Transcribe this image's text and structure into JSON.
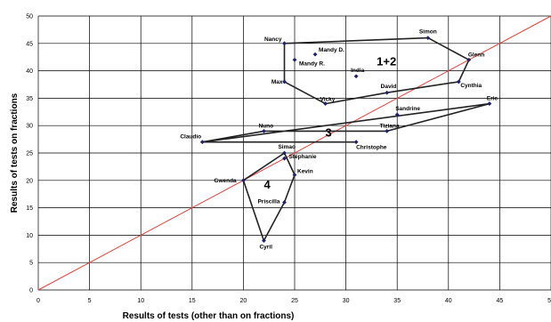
{
  "chart_data": {
    "type": "scatter",
    "title": "",
    "xlabel": "Results of tests  (other than on fractions)",
    "ylabel": "Results of tests on fractions",
    "xlim": [
      0,
      50
    ],
    "ylim": [
      0,
      50
    ],
    "x_ticks": [
      0,
      5,
      10,
      15,
      20,
      25,
      30,
      35,
      40,
      45,
      50
    ],
    "y_ticks": [
      0,
      5,
      10,
      15,
      20,
      25,
      30,
      35,
      40,
      45,
      50
    ],
    "grid": true,
    "legend": "none",
    "colors": {
      "points": "#1f1f6e",
      "outline": "#222222",
      "diagonal": "#e8423c",
      "grid": "#000000"
    },
    "points": [
      {
        "name": "Nancy",
        "x": 24,
        "y": 45
      },
      {
        "name": "Mandy D.",
        "x": 27,
        "y": 43
      },
      {
        "name": "Mandy R.",
        "x": 25,
        "y": 42
      },
      {
        "name": "Simon",
        "x": 38,
        "y": 46
      },
      {
        "name": "Glenn",
        "x": 42,
        "y": 42
      },
      {
        "name": "India",
        "x": 31,
        "y": 39
      },
      {
        "name": "Max",
        "x": 24,
        "y": 38
      },
      {
        "name": "Cynthia",
        "x": 41,
        "y": 38
      },
      {
        "name": "David",
        "x": 34,
        "y": 36
      },
      {
        "name": "Vicky",
        "x": 28,
        "y": 34
      },
      {
        "name": "Eric",
        "x": 44,
        "y": 34
      },
      {
        "name": "Sandrine",
        "x": 35,
        "y": 32
      },
      {
        "name": "Nuno",
        "x": 22,
        "y": 29
      },
      {
        "name": "Tiziana",
        "x": 34,
        "y": 29
      },
      {
        "name": "Claudio",
        "x": 16,
        "y": 27
      },
      {
        "name": "Christophe",
        "x": 31,
        "y": 27
      },
      {
        "name": "Simao",
        "x": 24,
        "y": 25
      },
      {
        "name": "Stéphanie",
        "x": 24,
        "y": 24
      },
      {
        "name": "Gwenda",
        "x": 20,
        "y": 20
      },
      {
        "name": "Kevin",
        "x": 25,
        "y": 21
      },
      {
        "name": "Priscilla",
        "x": 24,
        "y": 16
      },
      {
        "name": "Cyril",
        "x": 22,
        "y": 9
      }
    ],
    "groups": [
      {
        "label": "1+2",
        "label_at": [
          33,
          41
        ],
        "outline": [
          [
            24,
            45
          ],
          [
            38,
            46
          ],
          [
            42,
            42
          ],
          [
            41,
            38
          ],
          [
            34,
            36
          ],
          [
            28,
            34
          ],
          [
            24,
            38
          ],
          [
            24,
            45
          ]
        ]
      },
      {
        "label": "3",
        "label_at": [
          28,
          28
        ],
        "outline": [
          [
            16,
            27
          ],
          [
            22,
            29
          ],
          [
            34,
            29
          ],
          [
            44,
            34
          ],
          [
            16,
            27
          ],
          [
            31,
            27
          ]
        ]
      },
      {
        "label": "4",
        "label_at": [
          22,
          18.5
        ],
        "outline": [
          [
            24,
            25
          ],
          [
            25,
            21
          ],
          [
            24,
            16
          ],
          [
            22,
            9
          ],
          [
            20,
            20
          ],
          [
            24,
            25
          ]
        ]
      }
    ],
    "reference_line": {
      "from": [
        0,
        0
      ],
      "to": [
        50,
        50
      ]
    }
  }
}
